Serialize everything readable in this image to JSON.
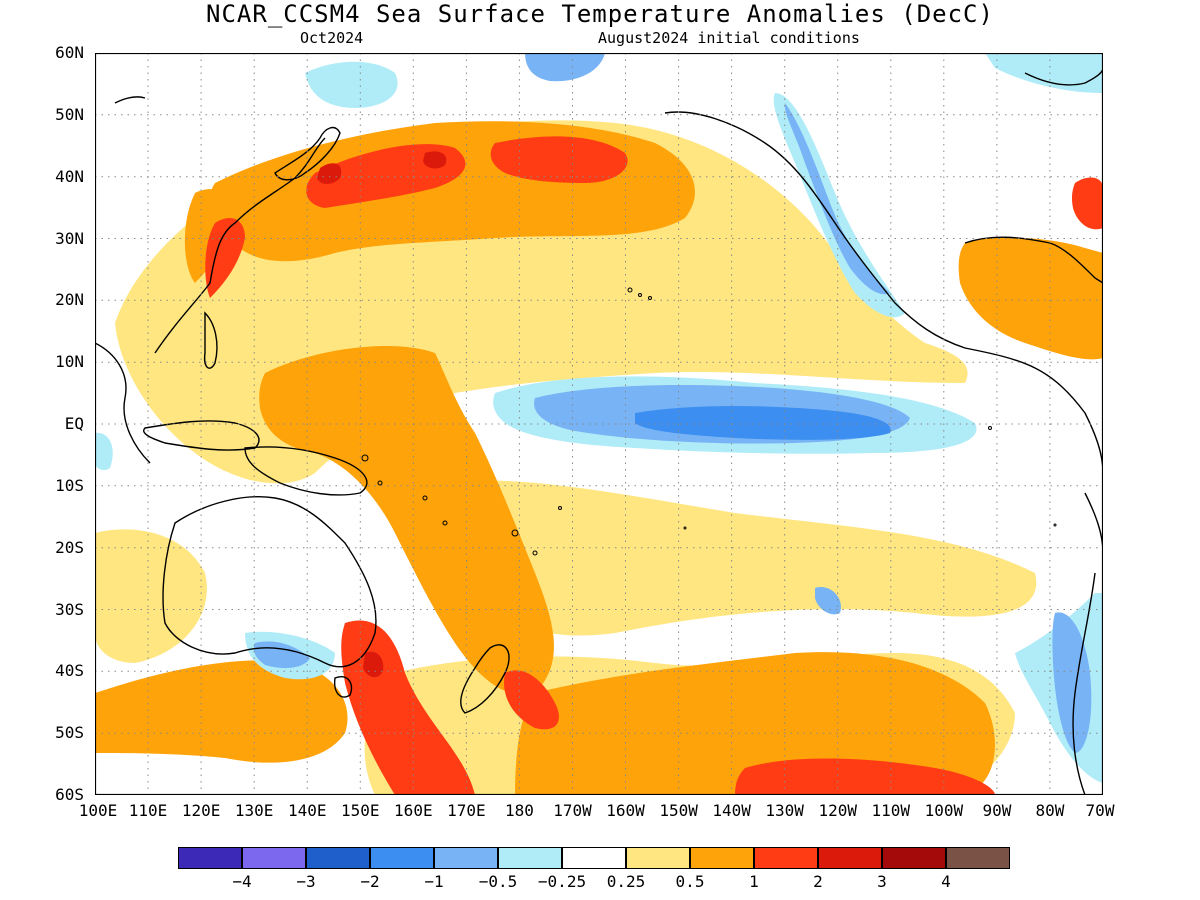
{
  "title": "NCAR_CCSM4 Sea Surface Temperature Anomalies (DecC)",
  "subtitle_left": "Oct2024",
  "subtitle_right": "August2024 initial conditions",
  "lat_labels": [
    "60N",
    "50N",
    "40N",
    "30N",
    "20N",
    "10N",
    "EQ",
    "10S",
    "20S",
    "30S",
    "40S",
    "50S",
    "60S"
  ],
  "lon_labels": [
    "100E",
    "110E",
    "120E",
    "130E",
    "140E",
    "150E",
    "160E",
    "170E",
    "180",
    "170W",
    "160W",
    "150W",
    "140W",
    "130W",
    "120W",
    "110W",
    "100W",
    "90W",
    "80W",
    "70W"
  ],
  "colorbar": {
    "colors": [
      "#3c29b8",
      "#7b68ee",
      "#1e5fcc",
      "#3c8ff0",
      "#78b4f5",
      "#b0ecf8",
      "#ffffff",
      "#ffe680",
      "#ffa30a",
      "#ff3c14",
      "#dc1a0c",
      "#a50a0a",
      "#7a5246"
    ],
    "labels": [
      "−4",
      "−3",
      "−2",
      "−1",
      "−0.5",
      "−0.25",
      "0.25",
      "0.5",
      "1",
      "2",
      "3",
      "4"
    ]
  },
  "map": {
    "projection": "lat-lon",
    "region": "Pacific Ocean",
    "lon_range": [
      "100E",
      "70W"
    ],
    "lat_range": [
      "60S",
      "60N"
    ],
    "grid": true
  }
}
